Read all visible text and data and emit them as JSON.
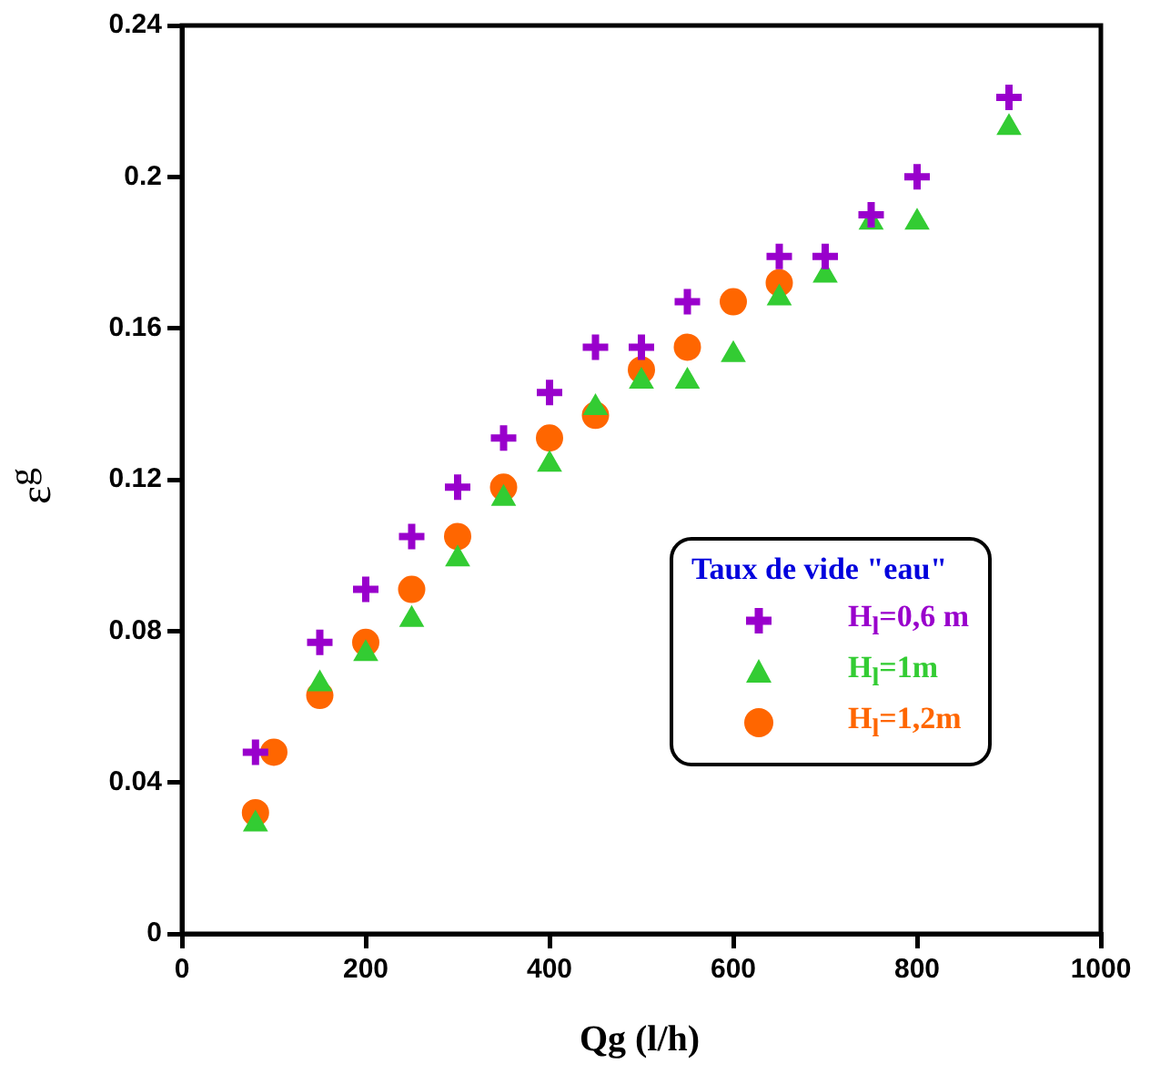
{
  "chart_data": {
    "type": "scatter",
    "xlabel": "Qg (l/h)",
    "ylabel": "ε$^{g}$",
    "legend_title": "Taux de vide \"eau\"",
    "legend": "right",
    "xlim": [
      0,
      1000
    ],
    "xticks": [
      0,
      200,
      400,
      600,
      800,
      1000
    ],
    "ylim": [
      0,
      0.24
    ],
    "yticks": [
      0,
      0.04,
      0.08,
      0.12,
      0.16,
      0.2,
      0.24
    ],
    "grid": false,
    "series": [
      {
        "name": "H$_{l}$=0,6 m",
        "color": "#9900cc",
        "marker": "cross",
        "x": [
          80,
          150,
          200,
          250,
          300,
          350,
          400,
          450,
          500,
          550,
          650,
          700,
          750,
          800,
          900
        ],
        "values": [
          0.048,
          0.077,
          0.091,
          0.105,
          0.118,
          0.131,
          0.143,
          0.155,
          0.155,
          0.167,
          0.179,
          0.179,
          0.19,
          0.2,
          0.221
        ]
      },
      {
        "name": "H$_{l}$=1m",
        "color": "#33cc33",
        "marker": "triangle",
        "x": [
          80,
          150,
          200,
          250,
          300,
          350,
          400,
          450,
          500,
          550,
          600,
          650,
          700,
          750,
          800,
          900
        ],
        "values": [
          0.029,
          0.066,
          0.074,
          0.083,
          0.099,
          0.115,
          0.124,
          0.139,
          0.146,
          0.146,
          0.153,
          0.168,
          0.174,
          0.188,
          0.188,
          0.213
        ]
      },
      {
        "name": "H$_{l}$=1,2m",
        "color": "#ff6600",
        "marker": "circle",
        "x": [
          80,
          100,
          150,
          200,
          250,
          300,
          350,
          400,
          450,
          500,
          550,
          600,
          650
        ],
        "values": [
          0.032,
          0.048,
          0.063,
          0.077,
          0.091,
          0.105,
          0.118,
          0.131,
          0.137,
          0.149,
          0.155,
          0.167,
          0.172
        ]
      }
    ]
  }
}
